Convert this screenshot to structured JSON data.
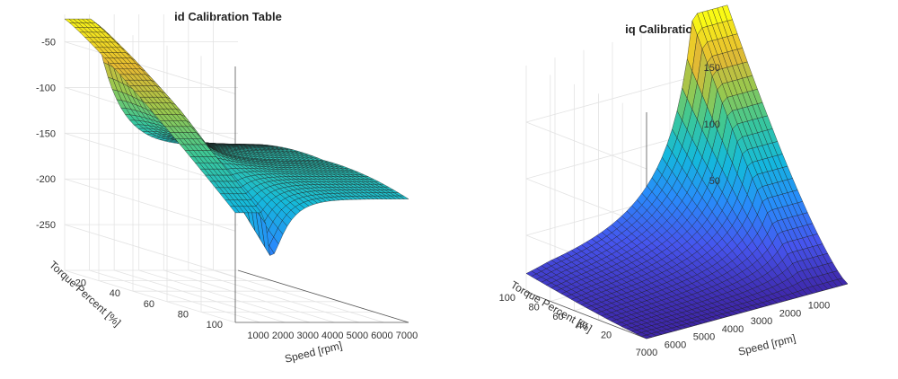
{
  "chart_data": [
    {
      "type": "surface",
      "title": "id Calibration Table",
      "xlabel": "Speed [rpm]",
      "ylabel": "Torque Percent [%]",
      "zlabel": "",
      "x_range": [
        0,
        7000
      ],
      "y_range": [
        0,
        100
      ],
      "z_range": [
        -300,
        -20
      ],
      "x_ticks": [
        "1000",
        "2000",
        "3000",
        "4000",
        "5000",
        "6000",
        "7000"
      ],
      "y_ticks": [
        "20",
        "40",
        "60",
        "80",
        "100"
      ],
      "z_ticks": [
        "-50",
        "-100",
        "-150",
        "-200",
        "-250"
      ],
      "grid": true,
      "colormap": "parula",
      "surface_samples": {
        "description_axis": "z at (speed rpm, torque %)",
        "points": [
          {
            "speed": 0,
            "torque": 0,
            "z": -25
          },
          {
            "speed": 1000,
            "torque": 0,
            "z": -25
          },
          {
            "speed": 1200,
            "torque": 0,
            "z": -40
          },
          {
            "speed": 7000,
            "torque": 0,
            "z": -95
          },
          {
            "speed": 0,
            "torque": 100,
            "z": -180
          },
          {
            "speed": 1200,
            "torque": 100,
            "z": -290
          },
          {
            "speed": 7000,
            "torque": 100,
            "z": -185
          }
        ]
      }
    },
    {
      "type": "surface",
      "title": "iq Calibration Table",
      "xlabel": "Speed [rpm]",
      "ylabel": "Torque Percent [%]",
      "zlabel": "",
      "x_range": [
        0,
        7000
      ],
      "y_range": [
        0,
        100
      ],
      "z_range": [
        0,
        200
      ],
      "x_ticks": [
        "1000",
        "2000",
        "3000",
        "4000",
        "5000",
        "6000",
        "7000"
      ],
      "y_ticks": [
        "20",
        "40",
        "60",
        "80",
        "100"
      ],
      "z_ticks": [
        "50",
        "100",
        "150"
      ],
      "grid": true,
      "colormap": "parula",
      "surface_samples": {
        "description_axis": "z at (speed rpm, torque %)",
        "points": [
          {
            "speed": 0,
            "torque": 100,
            "z": 205
          },
          {
            "speed": 1000,
            "torque": 100,
            "z": 205
          },
          {
            "speed": 7000,
            "torque": 100,
            "z": 20
          },
          {
            "speed": 0,
            "torque": 0,
            "z": 0
          },
          {
            "speed": 7000,
            "torque": 0,
            "z": 0
          }
        ]
      }
    }
  ]
}
